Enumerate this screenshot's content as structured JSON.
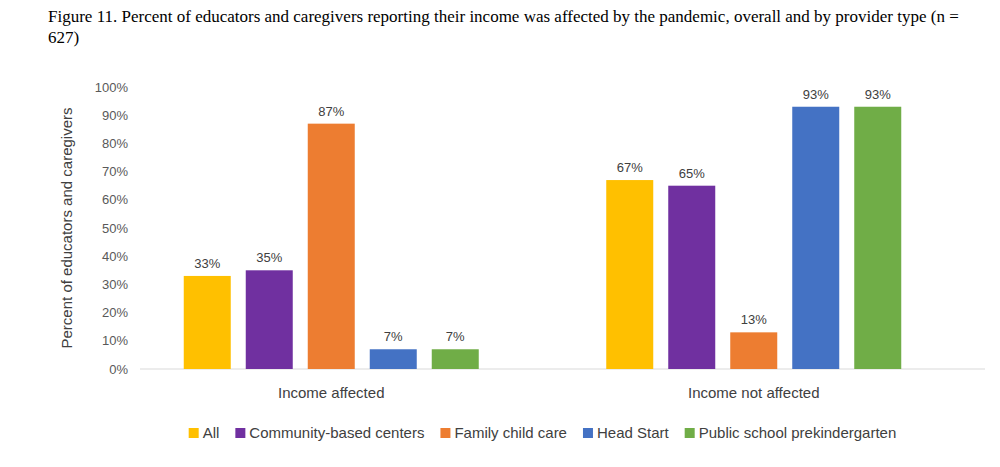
{
  "chart_data": {
    "type": "bar",
    "title": "Figure 11. Percent of educators and caregivers reporting their income was affected by the pandemic, overall and by provider type (n = 627)",
    "y_label": "Percent of educators and caregivers",
    "categories": [
      "Income affected",
      "Income not affected"
    ],
    "series": [
      {
        "name": "All",
        "color": "#ffc000",
        "values": [
          33,
          67
        ],
        "value_labels": [
          "33%",
          "67%"
        ]
      },
      {
        "name": "Community-based centers",
        "color": "#7030a0",
        "values": [
          35,
          65
        ],
        "value_labels": [
          "35%",
          "65%"
        ]
      },
      {
        "name": "Family child care",
        "color": "#ed7d31",
        "values": [
          87,
          13
        ],
        "value_labels": [
          "87%",
          "13%"
        ]
      },
      {
        "name": "Head Start",
        "color": "#4472c4",
        "values": [
          7,
          93
        ],
        "value_labels": [
          "7%",
          "93%"
        ]
      },
      {
        "name": "Public school prekindergarten",
        "color": "#70ad47",
        "values": [
          7,
          93
        ],
        "value_labels": [
          "7%",
          "93%"
        ]
      }
    ],
    "ylim": [
      0,
      100
    ],
    "yticks": [
      {
        "value": 0,
        "label": "0%"
      },
      {
        "value": 10,
        "label": "10%"
      },
      {
        "value": 20,
        "label": "20%"
      },
      {
        "value": 30,
        "label": "30%"
      },
      {
        "value": 40,
        "label": "40%"
      },
      {
        "value": 50,
        "label": "50%"
      },
      {
        "value": 60,
        "label": "60%"
      },
      {
        "value": 70,
        "label": "70%"
      },
      {
        "value": 80,
        "label": "80%"
      },
      {
        "value": 90,
        "label": "90%"
      },
      {
        "value": 100,
        "label": "100%"
      }
    ],
    "grid": false,
    "legend": "bottom",
    "data_labels": true
  }
}
